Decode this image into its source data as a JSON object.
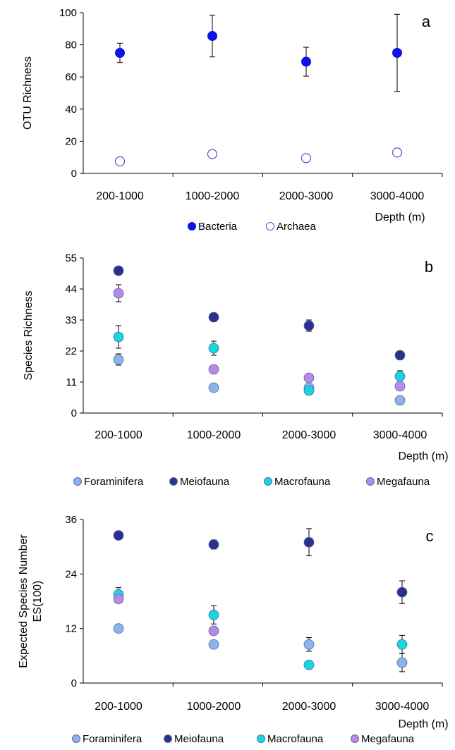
{
  "chart_data": [
    {
      "type": "scatter",
      "panel_label": "a",
      "categories": [
        "200-1000",
        "1000-2000",
        "2000-3000",
        "3000-4000"
      ],
      "xlabel": "Depth (m)",
      "ylabel": "OTU Richness",
      "ylim": [
        0,
        100
      ],
      "yticks": [
        0,
        20,
        40,
        60,
        80,
        100
      ],
      "legend_position": "bottom",
      "series": [
        {
          "name": "Bacteria",
          "color": "#0a14e6",
          "filled": true,
          "values": [
            75,
            85.5,
            69.5,
            75
          ],
          "errors": [
            6,
            13,
            9,
            24
          ]
        },
        {
          "name": "Archaea",
          "color": "#5050d0",
          "filled": false,
          "values": [
            7.5,
            12,
            9.5,
            13
          ],
          "errors": [
            0,
            0,
            0,
            0
          ]
        }
      ]
    },
    {
      "type": "scatter",
      "panel_label": "b",
      "categories": [
        "200-1000",
        "1000-2000",
        "2000-3000",
        "3000-4000"
      ],
      "xlabel": "Depth (m)",
      "ylabel": "Species Richness",
      "ylim": [
        0,
        55
      ],
      "yticks": [
        0,
        11,
        22,
        33,
        44,
        55
      ],
      "legend_position": "bottom",
      "series": [
        {
          "name": "Foraminifera",
          "color": "#8ab4f0",
          "values": [
            19,
            9,
            9,
            4.5
          ],
          "errors": [
            2,
            0,
            1,
            1.5
          ]
        },
        {
          "name": "Meiofauna",
          "color": "#2b2f8f",
          "values": [
            50.5,
            34,
            31,
            20.5
          ],
          "errors": [
            0.5,
            1.5,
            2,
            0
          ]
        },
        {
          "name": "Macrofauna",
          "color": "#17d6e3",
          "values": [
            27,
            23,
            8,
            13
          ],
          "errors": [
            4,
            2.5,
            1,
            2
          ]
        },
        {
          "name": "Megafauna",
          "color": "#b58ae8",
          "values": [
            42.5,
            15.5,
            12.5,
            9.5
          ],
          "errors": [
            3,
            0,
            0,
            0
          ]
        }
      ]
    },
    {
      "type": "scatter",
      "panel_label": "c",
      "categories": [
        "200-1000",
        "1000-2000",
        "2000-3000",
        "3000-4000"
      ],
      "xlabel": "Depth (m)",
      "ylabel": "Expected Species Number ES(100)",
      "ylabel_lines": [
        "Expected Species Number",
        "ES(100)"
      ],
      "ylim": [
        0,
        36
      ],
      "yticks": [
        0,
        12,
        24,
        36
      ],
      "legend_position": "bottom",
      "series": [
        {
          "name": "Foraminifera",
          "color": "#8ab4f0",
          "values": [
            12,
            8.5,
            8.5,
            4.5
          ],
          "errors": [
            0.5,
            0,
            1.5,
            2
          ]
        },
        {
          "name": "Meiofauna",
          "color": "#2b2f8f",
          "values": [
            32.5,
            30.5,
            31,
            20
          ],
          "errors": [
            0,
            1,
            3,
            2.5
          ]
        },
        {
          "name": "Macrofauna",
          "color": "#17d6e3",
          "values": [
            19.5,
            15,
            4,
            8.5
          ],
          "errors": [
            1.5,
            2,
            0,
            2
          ]
        },
        {
          "name": "Megafauna",
          "color": "#b58ae8",
          "values": [
            18.5,
            11.5,
            0,
            0
          ],
          "errors": [
            0,
            0,
            0,
            0
          ]
        }
      ]
    }
  ]
}
